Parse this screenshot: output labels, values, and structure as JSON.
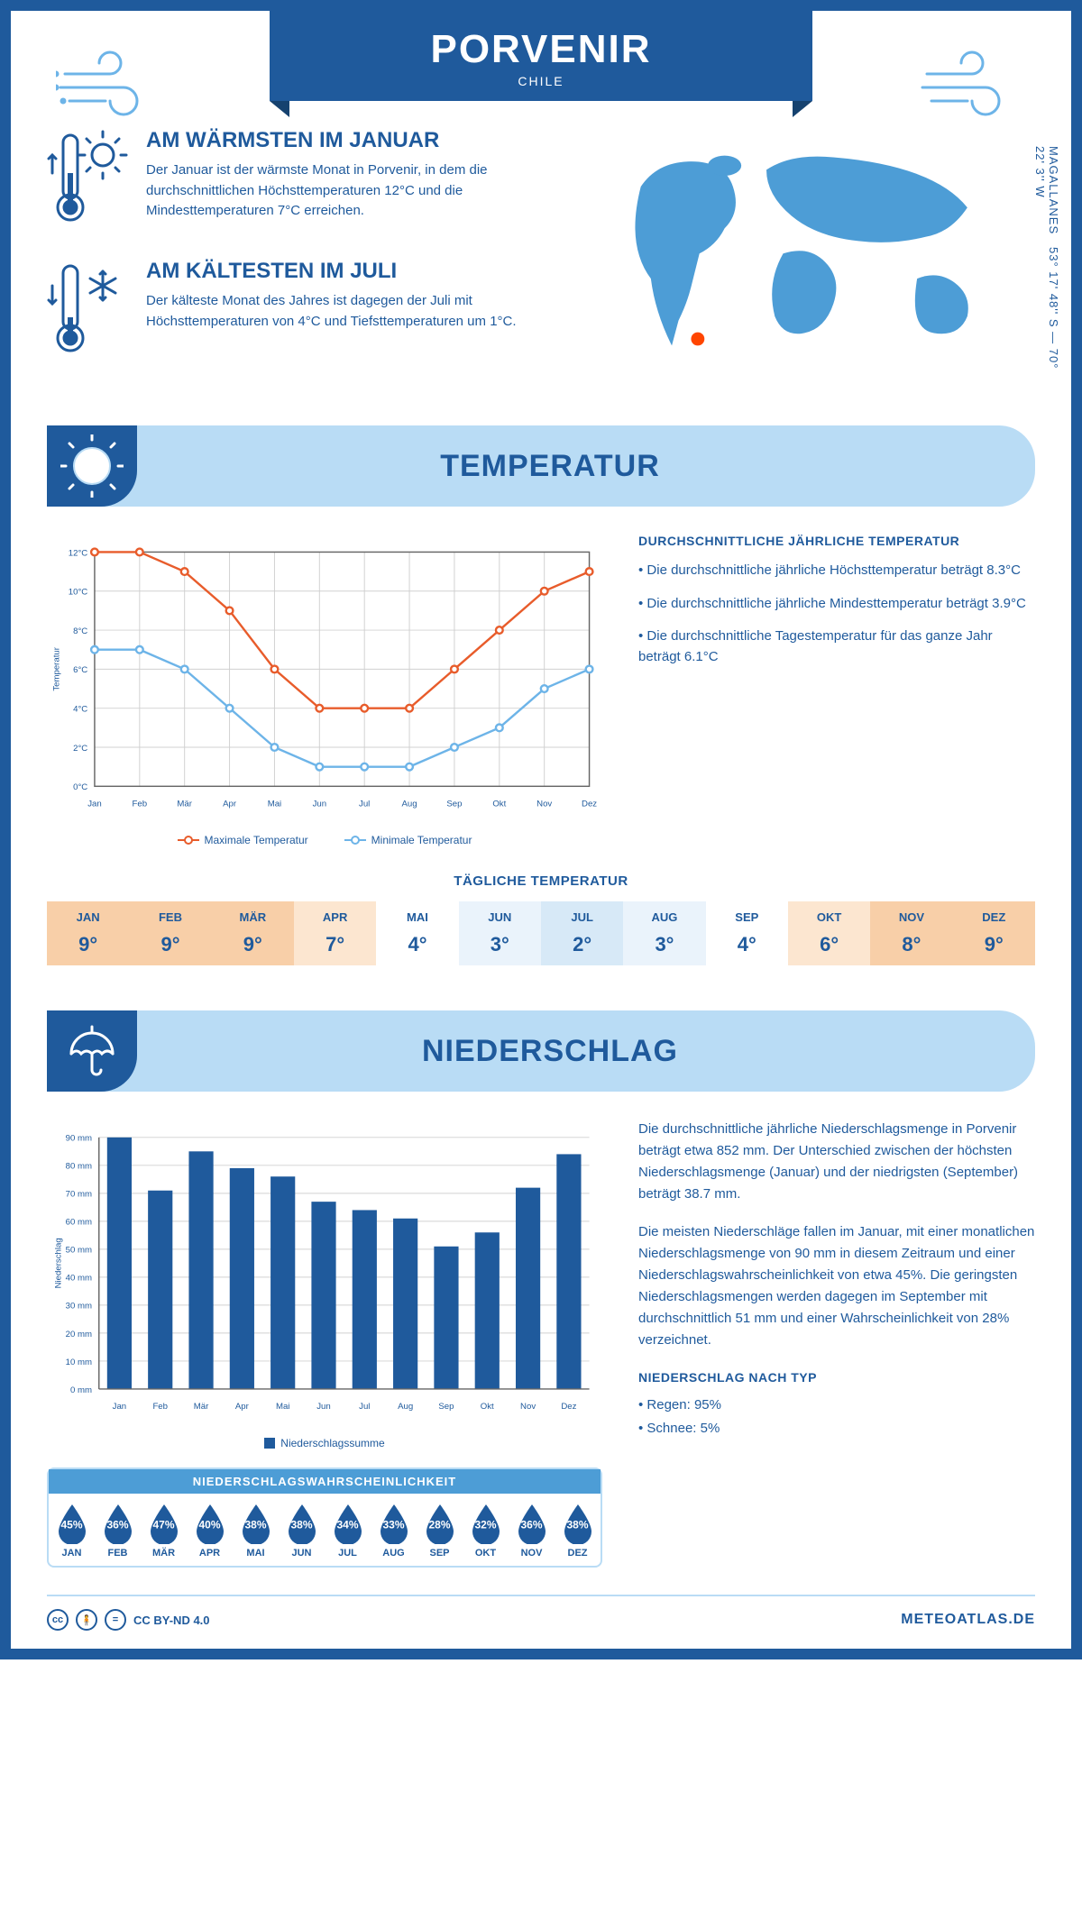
{
  "header": {
    "city": "PORVENIR",
    "country": "CHILE"
  },
  "coords": "53° 17' 48'' S — 70° 22' 3'' W",
  "region": "MAGALLANES",
  "facts": {
    "warm": {
      "title": "AM WÄRMSTEN IM JANUAR",
      "text": "Der Januar ist der wärmste Monat in Porvenir, in dem die durchschnittlichen Höchsttemperaturen 12°C und die Mindesttemperaturen 7°C erreichen."
    },
    "cold": {
      "title": "AM KÄLTESTEN IM JULI",
      "text": "Der kälteste Monat des Jahres ist dagegen der Juli mit Höchsttemperaturen von 4°C und Tiefsttemperaturen um 1°C."
    }
  },
  "temp_section": {
    "title": "TEMPERATUR",
    "info_title": "DURCHSCHNITTLICHE JÄHRLICHE TEMPERATUR",
    "bullets": [
      "• Die durchschnittliche jährliche Höchsttemperatur beträgt 8.3°C",
      "• Die durchschnittliche jährliche Mindesttemperatur beträgt 3.9°C",
      "• Die durchschnittliche Tagestemperatur für das ganze Jahr beträgt 6.1°C"
    ],
    "chart": {
      "months": [
        "Jan",
        "Feb",
        "Mär",
        "Apr",
        "Mai",
        "Jun",
        "Jul",
        "Aug",
        "Sep",
        "Okt",
        "Nov",
        "Dez"
      ],
      "max": [
        12,
        12,
        11,
        9,
        6,
        4,
        4,
        4,
        6,
        8,
        10,
        11
      ],
      "min": [
        7,
        7,
        6,
        4,
        2,
        1,
        1,
        1,
        2,
        3,
        5,
        6
      ],
      "ylim": [
        0,
        12
      ],
      "ytick_step": 2,
      "max_color": "#e85c2b",
      "min_color": "#6db4e8",
      "grid_color": "#d0d0d0",
      "axis_color": "#666",
      "y_axis_title": "Temperatur",
      "legend_max": "Maximale Temperatur",
      "legend_min": "Minimale Temperatur"
    },
    "daily": {
      "title": "TÄGLICHE TEMPERATUR",
      "months": [
        "JAN",
        "FEB",
        "MÄR",
        "APR",
        "MAI",
        "JUN",
        "JUL",
        "AUG",
        "SEP",
        "OKT",
        "NOV",
        "DEZ"
      ],
      "values": [
        "9°",
        "9°",
        "9°",
        "7°",
        "4°",
        "3°",
        "2°",
        "3°",
        "4°",
        "6°",
        "8°",
        "9°"
      ],
      "colors": [
        "#f8cfa8",
        "#f8cfa8",
        "#f8cfa8",
        "#fce6d0",
        "#ffffff",
        "#eaf3fb",
        "#d7e9f7",
        "#eaf3fb",
        "#ffffff",
        "#fce6d0",
        "#f8cfa8",
        "#f8cfa8"
      ]
    }
  },
  "precip_section": {
    "title": "NIEDERSCHLAG",
    "chart": {
      "months": [
        "Jan",
        "Feb",
        "Mär",
        "Apr",
        "Mai",
        "Jun",
        "Jul",
        "Aug",
        "Sep",
        "Okt",
        "Nov",
        "Dez"
      ],
      "values": [
        90,
        71,
        85,
        79,
        76,
        67,
        64,
        61,
        51,
        56,
        72,
        84
      ],
      "ylim": [
        0,
        90
      ],
      "ytick_step": 10,
      "bar_color": "#1f5a9c",
      "grid_color": "#d0d0d0",
      "y_axis_title": "Niederschlag",
      "legend": "Niederschlagssumme"
    },
    "para1": "Die durchschnittliche jährliche Niederschlagsmenge in Porvenir beträgt etwa 852 mm. Der Unterschied zwischen der höchsten Niederschlagsmenge (Januar) und der niedrigsten (September) beträgt 38.7 mm.",
    "para2": "Die meisten Niederschläge fallen im Januar, mit einer monatlichen Niederschlagsmenge von 90 mm in diesem Zeitraum und einer Niederschlagswahrscheinlichkeit von etwa 45%. Die geringsten Niederschlagsmengen werden dagegen im September mit durchschnittlich 51 mm und einer Wahrscheinlichkeit von 28% verzeichnet.",
    "type_title": "NIEDERSCHLAG NACH TYP",
    "type_rain": "• Regen: 95%",
    "type_snow": "• Schnee: 5%",
    "prob": {
      "title": "NIEDERSCHLAGSWAHRSCHEINLICHKEIT",
      "months": [
        "JAN",
        "FEB",
        "MÄR",
        "APR",
        "MAI",
        "JUN",
        "JUL",
        "AUG",
        "SEP",
        "OKT",
        "NOV",
        "DEZ"
      ],
      "values": [
        "45%",
        "36%",
        "47%",
        "40%",
        "38%",
        "38%",
        "34%",
        "33%",
        "28%",
        "32%",
        "36%",
        "38%"
      ],
      "drop_color": "#1f5a9c"
    }
  },
  "footer": {
    "license": "CC BY-ND 4.0",
    "brand": "METEOATLAS.DE"
  }
}
